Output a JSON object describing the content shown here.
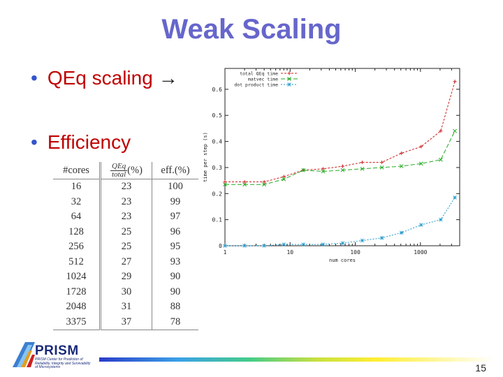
{
  "slide": {
    "title": "Weak Scaling",
    "bullets": [
      {
        "text": "QEq scaling",
        "arrow": "→"
      },
      {
        "text": "Efficiency"
      }
    ],
    "page_number": "15"
  },
  "table": {
    "headers": {
      "cores": "#cores",
      "qeq_num": "QEq",
      "qeq_den": "total",
      "qeq_suffix": "(%)",
      "eff": "eff.(%)"
    },
    "rows": [
      {
        "cores": "16",
        "qeq": "23",
        "eff": "100"
      },
      {
        "cores": "32",
        "qeq": "23",
        "eff": "99"
      },
      {
        "cores": "64",
        "qeq": "23",
        "eff": "97"
      },
      {
        "cores": "128",
        "qeq": "25",
        "eff": "96"
      },
      {
        "cores": "256",
        "qeq": "25",
        "eff": "95"
      },
      {
        "cores": "512",
        "qeq": "27",
        "eff": "93"
      },
      {
        "cores": "1024",
        "qeq": "29",
        "eff": "90"
      },
      {
        "cores": "1728",
        "qeq": "30",
        "eff": "90"
      },
      {
        "cores": "2048",
        "qeq": "31",
        "eff": "88"
      },
      {
        "cores": "3375",
        "qeq": "37",
        "eff": "78"
      }
    ]
  },
  "logo": {
    "word": "PRISM",
    "subtitle": "PRISM Center for Prediction of Reliability, Integrity and Survivability of Microsystems"
  },
  "chart_data": {
    "type": "line",
    "xscale": "log",
    "xlim": [
      1,
      4000
    ],
    "ylim": [
      0,
      0.68
    ],
    "xticks": [
      {
        "v": 1,
        "label": "1"
      },
      {
        "v": 10,
        "label": "10"
      },
      {
        "v": 100,
        "label": "100"
      },
      {
        "v": 1000,
        "label": "1000"
      }
    ],
    "yticks": [
      {
        "v": 0,
        "label": "0"
      },
      {
        "v": 0.1,
        "label": "0.1"
      },
      {
        "v": 0.2,
        "label": "0.2"
      },
      {
        "v": 0.3,
        "label": "0.3"
      },
      {
        "v": 0.4,
        "label": "0.4"
      },
      {
        "v": 0.5,
        "label": "0.5"
      },
      {
        "v": 0.6,
        "label": "0.6"
      }
    ],
    "xlabel": "num cores",
    "ylabel": "time per step (s)",
    "legend_position": "top-left",
    "series": [
      {
        "name": "total QEq time",
        "color": "#cc2222",
        "marker": "plus",
        "dash": "3,2",
        "x": [
          1,
          2,
          4,
          8,
          16,
          32,
          64,
          128,
          256,
          512,
          1024,
          2048,
          3375
        ],
        "y": [
          0.245,
          0.245,
          0.245,
          0.265,
          0.29,
          0.295,
          0.305,
          0.32,
          0.32,
          0.355,
          0.38,
          0.44,
          0.63
        ]
      },
      {
        "name": "matvec time",
        "color": "#22aa22",
        "marker": "cross",
        "dash": "6,3",
        "x": [
          1,
          2,
          4,
          8,
          16,
          32,
          64,
          128,
          256,
          512,
          1024,
          2048,
          3375
        ],
        "y": [
          0.235,
          0.235,
          0.235,
          0.255,
          0.29,
          0.285,
          0.29,
          0.295,
          0.3,
          0.305,
          0.315,
          0.33,
          0.44
        ]
      },
      {
        "name": "dot product time",
        "color": "#2299cc",
        "marker": "star",
        "dash": "2,2",
        "x": [
          1,
          2,
          4,
          8,
          16,
          32,
          64,
          128,
          256,
          512,
          1024,
          2048,
          3375
        ],
        "y": [
          0.0,
          0.0,
          0.0,
          0.005,
          0.005,
          0.005,
          0.01,
          0.02,
          0.03,
          0.05,
          0.08,
          0.1,
          0.185
        ]
      }
    ]
  }
}
